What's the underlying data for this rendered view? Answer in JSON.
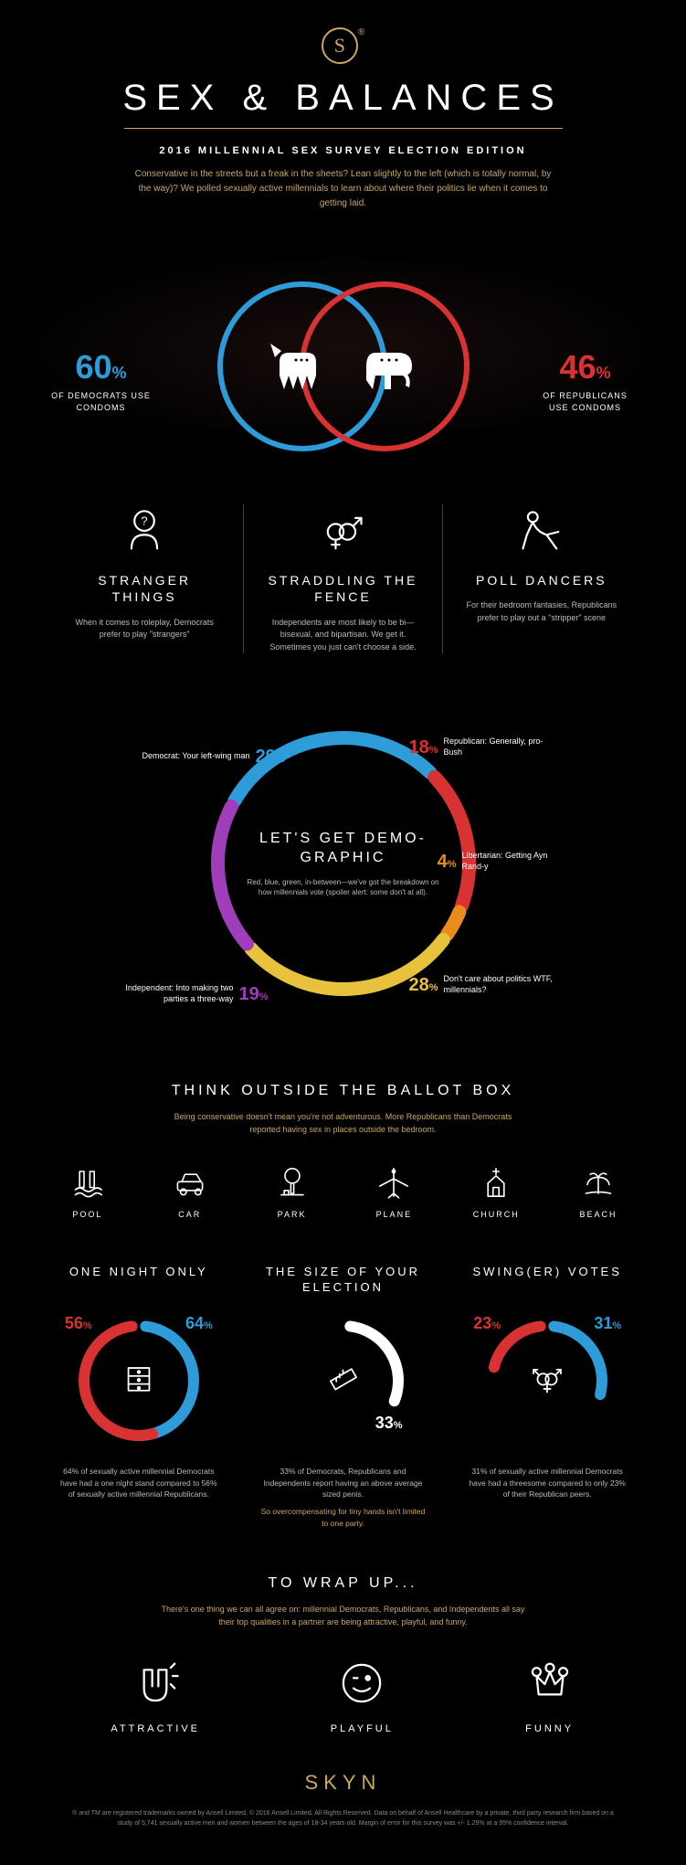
{
  "colors": {
    "gold": "#c9a860",
    "blue": "#2d9cd8",
    "red": "#d93232",
    "orange": "#e88c1a",
    "yellow": "#e8c23c",
    "purple": "#a03db8",
    "white": "#ffffff",
    "bg": "#000000",
    "muted": "#bbbbbb"
  },
  "header": {
    "logo_letter": "S",
    "title": "SEX & BALANCES",
    "subtitle": "2016 MILLENNIAL SEX SURVEY ELECTION EDITION",
    "intro": "Conservative in the streets but a freak in the sheets? Lean slightly to the left (which is totally normal, by the way)? We polled sexually active millennials to learn about where their politics lie when it comes to getting laid."
  },
  "venn": {
    "democrat": {
      "pct": "60",
      "label": "OF DEMOCRATS USE CONDOMS",
      "color": "#2d9cd8"
    },
    "republican": {
      "pct": "46",
      "label": "OF REPUBLICANS USE CONDOMS",
      "color": "#d93232"
    },
    "circle_radius": 90,
    "circle_overlap": 50,
    "stroke_width": 6
  },
  "three_facts": [
    {
      "title": "STRANGER THINGS",
      "body": "When it comes to roleplay, Democrats prefer to play \"strangers\"",
      "icon": "question-person"
    },
    {
      "title": "STRADDLING THE FENCE",
      "body": "Independents are most likely to be bi—bisexual, and bipartisan. We get it. Sometimes you just can't choose a side.",
      "icon": "gender-combo"
    },
    {
      "title": "POLL DANCERS",
      "body": "For their bedroom fantasies, Republicans prefer to play out a \"stripper\" scene",
      "icon": "dancer"
    }
  ],
  "donut": {
    "title": "LET'S GET DEMO-GRAPHIC",
    "body": "Red, blue, green, in-between—we've got the breakdown on how millennials vote (spoiler alert: some don't at all).",
    "radius": 150,
    "inner_radius": 130,
    "stroke_width": 15,
    "gap_deg": 3,
    "segments": [
      {
        "label": "Democrat: Your left-wing man",
        "pct": 29,
        "color": "#2d9cd8",
        "pct_color": "#2d9cd8",
        "label_pos": "left-top"
      },
      {
        "label": "Republican: Generally, pro-Bush",
        "pct": 18,
        "color": "#d93232",
        "pct_color": "#d93232",
        "label_pos": "right-top"
      },
      {
        "label": "Libertarian: Getting Ayn Rand-y",
        "pct": 4,
        "color": "#e88c1a",
        "pct_color": "#e88c1a",
        "label_pos": "right-mid"
      },
      {
        "label": "Don't care about politics WTF, millennials?",
        "pct": 28,
        "color": "#e8c23c",
        "pct_color": "#e8c23c",
        "label_pos": "right-bot"
      },
      {
        "label": "Independent: Into making two parties a three-way",
        "pct": 19,
        "color": "#a03db8",
        "pct_color": "#a03db8",
        "label_pos": "left-bot"
      }
    ]
  },
  "ballot_box": {
    "title": "THINK OUTSIDE THE BALLOT BOX",
    "body": "Being conservative doesn't mean you're not adventurous. More Republicans than Democrats reported having sex in places outside the bedroom.",
    "places": [
      {
        "label": "POOL",
        "icon": "pool"
      },
      {
        "label": "CAR",
        "icon": "car"
      },
      {
        "label": "PARK",
        "icon": "park"
      },
      {
        "label": "PLANE",
        "icon": "plane"
      },
      {
        "label": "CHURCH",
        "icon": "church"
      },
      {
        "label": "BEACH",
        "icon": "beach"
      }
    ]
  },
  "gauges": [
    {
      "title": "ONE NIGHT ONLY",
      "arcs": [
        {
          "pct": 64,
          "color": "#2d9cd8",
          "side": "right"
        },
        {
          "pct": 56,
          "color": "#d93232",
          "side": "left"
        }
      ],
      "icon": "dresser",
      "body": "64% of sexually active millennial Democrats have had a one night stand compared to 56% of sexually active millennial Republicans.",
      "gold_note": ""
    },
    {
      "title": "THE SIZE OF YOUR ELECTION",
      "arcs": [
        {
          "pct": 33,
          "color": "#ffffff",
          "side": "right"
        }
      ],
      "icon": "ruler",
      "body": "33% of Democrats, Republicans and Independents report having an above average sized penis.",
      "gold_note": "So overcompensating for tiny hands isn't limited to one party."
    },
    {
      "title": "SWING(ER) VOTES",
      "arcs": [
        {
          "pct": 31,
          "color": "#2d9cd8",
          "side": "right"
        },
        {
          "pct": 23,
          "color": "#d93232",
          "side": "left"
        }
      ],
      "icon": "gender-mix",
      "body": "31% of sexually active millennial Democrats have had a threesome compared to only 23% of their Republican peers.",
      "gold_note": ""
    }
  ],
  "gauge_style": {
    "radius": 60,
    "stroke_width": 12,
    "gap_deg": 14
  },
  "wrap_up": {
    "title": "TO WRAP UP...",
    "body": "There's one thing we can all agree on: millennial Democrats, Republicans, and Independents all say their top qualities in a partner are being attractive, playful, and funny.",
    "items": [
      {
        "label": "ATTRACTIVE",
        "icon": "magnet"
      },
      {
        "label": "PLAYFUL",
        "icon": "wink"
      },
      {
        "label": "FUNNY",
        "icon": "crown"
      }
    ]
  },
  "footer": {
    "brand": "SKYN",
    "legal": "® and TM are registered trademarks owned by Ansell Limited. © 2016 Ansell Limited. All Rights Reserved. Data on behalf of Ansell Healthcare by a private, third party research firm based on a study of 5,741 sexually active men and women between the ages of 18-34 years old. Margin of error for this survey was +/- 1.29% at a 95% confidence interval."
  }
}
